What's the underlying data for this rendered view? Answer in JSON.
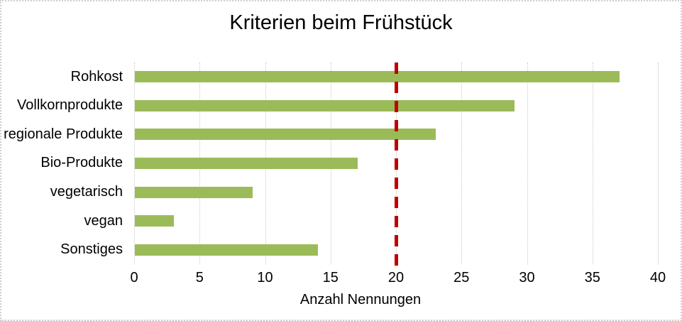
{
  "window": {
    "background": "#ffffff",
    "border_color": "#d0cece"
  },
  "chart_data": {
    "type": "bar",
    "orientation": "horizontal",
    "title": "Kriterien beim Frühstück",
    "categories": [
      "Rohkost",
      "Vollkornprodukte",
      "regionale Produkte",
      "Bio-Produkte",
      "vegetarisch",
      "vegan",
      "Sonstiges"
    ],
    "values": [
      37,
      29,
      23,
      17,
      9,
      3,
      14
    ],
    "xlabel": "Anzahl Nennungen",
    "ylabel": "",
    "xlim": [
      0,
      40
    ],
    "xticks": [
      0,
      5,
      10,
      15,
      20,
      25,
      30,
      35,
      40
    ],
    "grid": true,
    "legend": "none",
    "colors": {
      "bar": "#9bbb59",
      "gridline": "#c9c9c9",
      "axis_line": "#c9c9c9",
      "text": "#000000"
    },
    "reference_line": {
      "x": 20,
      "style": "dashed",
      "color": "#c00000"
    }
  }
}
